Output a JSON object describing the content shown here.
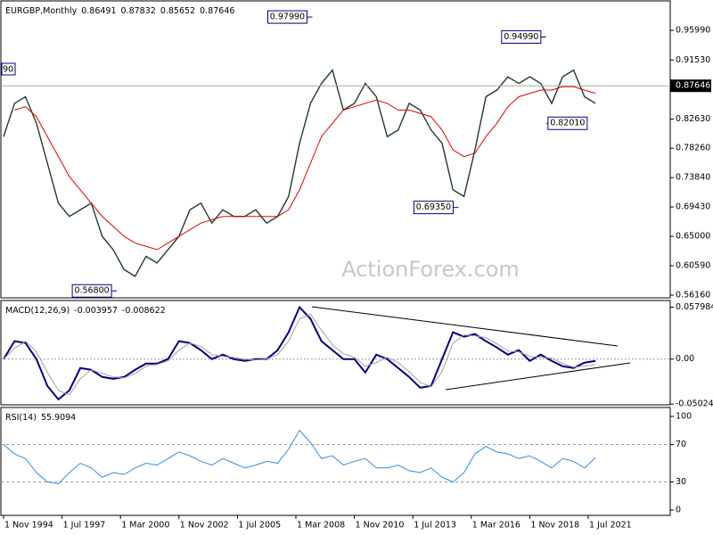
{
  "chart_data": [
    {
      "type": "line",
      "title": "EURGBP,Monthly",
      "ohlc": [
        0.86491,
        0.87832,
        0.85652,
        0.87646
      ],
      "last_price": 0.87646,
      "watermark": "ActionForex.com",
      "clipped_label": "90",
      "x": [
        "1 Nov 1994",
        "1 May 1995",
        "1 Nov 1995",
        "1 May 1996",
        "1 Nov 1996",
        "1 May 1997",
        "1 Nov 1997",
        "1 May 1998",
        "1 Nov 1998",
        "1 May 1999",
        "1 Nov 1999",
        "1 May 2000",
        "1 Nov 2000",
        "1 May 2001",
        "1 Nov 2001",
        "1 May 2002",
        "1 Nov 2002",
        "1 May 2003",
        "1 Nov 2003",
        "1 May 2004",
        "1 Nov 2004",
        "1 May 2005",
        "1 Nov 2005",
        "1 May 2006",
        "1 Nov 2006",
        "1 May 2007",
        "1 Nov 2007",
        "1 May 2008",
        "1 Nov 2008",
        "1 May 2009",
        "1 Nov 2009",
        "1 May 2010",
        "1 Nov 2010",
        "1 May 2011",
        "1 Nov 2011",
        "1 May 2012",
        "1 Nov 2012",
        "1 May 2013",
        "1 Nov 2013",
        "1 May 2014",
        "1 Nov 2014",
        "1 May 2015",
        "1 Nov 2015",
        "1 May 2016",
        "1 Nov 2016",
        "1 May 2017",
        "1 Nov 2017",
        "1 May 2018",
        "1 Nov 2018",
        "1 May 2019",
        "1 Nov 2019",
        "1 May 2020",
        "1 Nov 2020",
        "1 May 2021",
        "1 Nov 2021"
      ],
      "series": [
        {
          "color": "#1f3d2b",
          "values": [
            0.8,
            0.85,
            0.86,
            0.82,
            0.76,
            0.7,
            0.68,
            0.69,
            0.7,
            0.65,
            0.63,
            0.6,
            0.59,
            0.62,
            0.61,
            0.63,
            0.65,
            0.69,
            0.7,
            0.67,
            0.69,
            0.68,
            0.68,
            0.69,
            0.67,
            0.68,
            0.71,
            0.79,
            0.85,
            0.88,
            0.9,
            0.84,
            0.85,
            0.88,
            0.86,
            0.8,
            0.81,
            0.85,
            0.84,
            0.81,
            0.79,
            0.72,
            0.71,
            0.78,
            0.86,
            0.87,
            0.89,
            0.88,
            0.89,
            0.88,
            0.85,
            0.89,
            0.9,
            0.86,
            0.85
          ]
        },
        {
          "color": "#e00000",
          "values": [
            null,
            0.84,
            0.845,
            0.83,
            0.8,
            0.77,
            0.74,
            0.72,
            0.7,
            0.68,
            0.665,
            0.65,
            0.64,
            0.635,
            0.63,
            0.64,
            0.65,
            0.66,
            0.67,
            0.675,
            0.68,
            0.68,
            0.68,
            0.68,
            0.68,
            0.68,
            0.69,
            0.72,
            0.76,
            0.8,
            0.82,
            0.84,
            0.845,
            0.85,
            0.855,
            0.85,
            0.84,
            0.84,
            0.835,
            0.83,
            0.81,
            0.78,
            0.77,
            0.775,
            0.8,
            0.82,
            0.845,
            0.86,
            0.865,
            0.87,
            0.87,
            0.875,
            0.875,
            0.87,
            0.865
          ]
        }
      ],
      "ylim": [
        0.5576,
        1.0028
      ],
      "yticks": [
        {
          "value": 0.9599,
          "label": "0.95990"
        },
        {
          "value": 0.9153,
          "label": "0.91530"
        },
        {
          "value": 0.8263,
          "label": "0.82630"
        },
        {
          "value": 0.7826,
          "label": "0.78260"
        },
        {
          "value": 0.7384,
          "label": "0.73840"
        },
        {
          "value": 0.6943,
          "label": "0.69430"
        },
        {
          "value": 0.65,
          "label": "0.65000"
        },
        {
          "value": 0.6059,
          "label": "0.60590"
        },
        {
          "value": 0.5616,
          "label": "0.56160"
        }
      ],
      "annotations": [
        {
          "value": 0.9799,
          "label": "0.97990",
          "x": "1 Dec 2008"
        },
        {
          "value": 0.568,
          "label": "0.56800",
          "x": "1 Jan 2000"
        },
        {
          "value": 0.6935,
          "label": "0.69350",
          "x": "1 Aug 2015"
        },
        {
          "value": 0.9499,
          "label": "0.94990",
          "x": "1 Aug 2019"
        },
        {
          "value": 0.8201,
          "label": "0.82010",
          "x": "1 Aug 2019"
        }
      ]
    },
    {
      "type": "line",
      "title": "MACD(12,26,9)",
      "latest": [
        -0.003957,
        -0.008622
      ],
      "series": [
        {
          "color": "#000080",
          "values": [
            0.0,
            0.02,
            0.018,
            0.0,
            -0.03,
            -0.045,
            -0.035,
            -0.01,
            -0.012,
            -0.02,
            -0.022,
            -0.02,
            -0.012,
            -0.005,
            -0.005,
            0.0,
            0.02,
            0.018,
            0.01,
            0.0,
            0.005,
            0.0,
            -0.002,
            0.0,
            0.0,
            0.01,
            0.03,
            0.058,
            0.045,
            0.02,
            0.01,
            0.0,
            0.0,
            -0.015,
            0.005,
            0.0,
            -0.01,
            -0.02,
            -0.032,
            -0.03,
            0.0,
            0.03,
            0.025,
            0.028,
            0.02,
            0.013,
            0.005,
            0.01,
            -0.002,
            0.005,
            -0.002,
            -0.008,
            -0.01,
            -0.004,
            -0.002
          ]
        },
        {
          "color": "#a0a0a0",
          "values": [
            0.0,
            0.012,
            0.02,
            0.008,
            -0.015,
            -0.035,
            -0.04,
            -0.022,
            -0.012,
            -0.016,
            -0.02,
            -0.021,
            -0.016,
            -0.008,
            -0.006,
            -0.002,
            0.01,
            0.018,
            0.014,
            0.005,
            0.003,
            0.002,
            0.0,
            -0.001,
            0.0,
            0.005,
            0.02,
            0.045,
            0.05,
            0.032,
            0.016,
            0.006,
            0.002,
            -0.008,
            -0.004,
            0.002,
            -0.004,
            -0.014,
            -0.026,
            -0.031,
            -0.014,
            0.018,
            0.027,
            0.026,
            0.024,
            0.017,
            0.009,
            0.008,
            0.003,
            0.002,
            0.001,
            -0.005,
            -0.009,
            -0.008,
            -0.006
          ]
        }
      ],
      "ylim": [
        -0.0511,
        0.0645
      ],
      "yticks": [
        0.057984,
        {
          "value": 0,
          "label": "0.00"
        },
        -0.050241
      ]
    },
    {
      "type": "line",
      "title": "RSI(14)",
      "latest": [
        55.9094
      ],
      "series": [
        {
          "color": "#2f8ee0",
          "values": [
            70,
            60,
            55,
            40,
            30,
            28,
            40,
            50,
            45,
            35,
            40,
            38,
            45,
            50,
            48,
            55,
            62,
            58,
            52,
            48,
            55,
            50,
            45,
            48,
            52,
            50,
            65,
            85,
            72,
            55,
            58,
            48,
            52,
            55,
            45,
            45,
            48,
            42,
            40,
            45,
            35,
            30,
            40,
            60,
            68,
            62,
            60,
            55,
            58,
            52,
            45,
            55,
            52,
            45,
            56
          ]
        }
      ],
      "ylim": [
        -5.7,
        108.6
      ],
      "yticks": [
        100,
        70,
        30,
        0
      ],
      "levels": [
        70,
        30
      ],
      "xticks": [
        "1 Nov 1994",
        "1 Jul 1997",
        "1 Mar 2000",
        "1 Nov 2002",
        "1 Jul 2005",
        "1 Mar 2008",
        "1 Nov 2010",
        "1 Jul 2013",
        "1 Mar 2016",
        "1 Nov 2018",
        "1 Jul 2021"
      ]
    }
  ]
}
